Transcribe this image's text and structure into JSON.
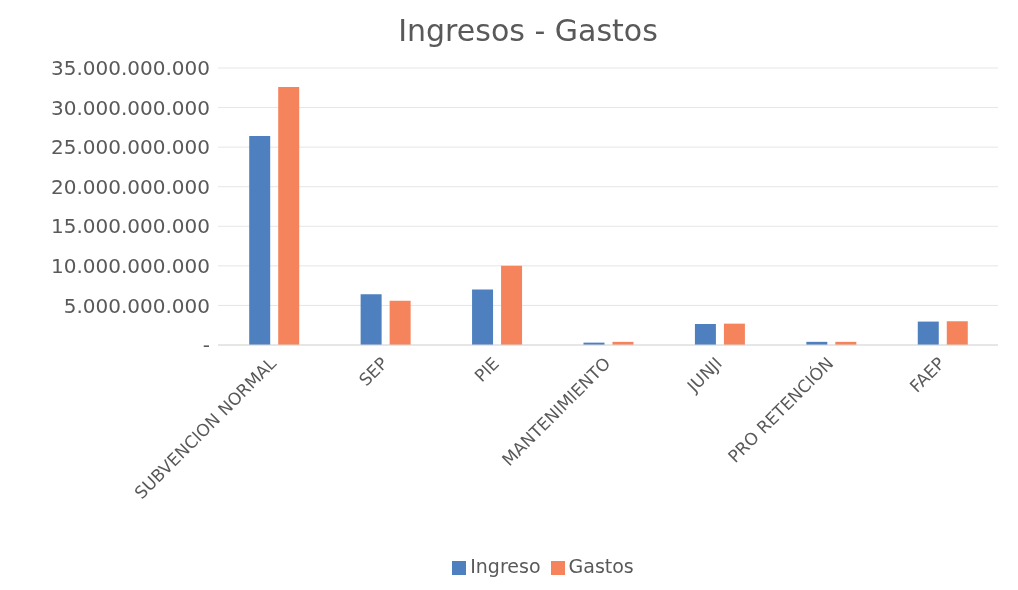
{
  "chart_data": {
    "type": "bar",
    "title": "Ingresos - Gastos",
    "categories": [
      "SUBVENCION NORMAL",
      "SEP",
      "PIE",
      "MANTENIMIENTO",
      "JUNJI",
      "PRO RETENCIÓN",
      "FAEP"
    ],
    "series": [
      {
        "name": "Ingreso",
        "color": "#4e80c0",
        "values": [
          26400000000,
          6400000000,
          7000000000,
          300000000,
          2650000000,
          400000000,
          2960000000
        ]
      },
      {
        "name": "Gastos",
        "color": "#f5845c",
        "values": [
          32600000000,
          5600000000,
          10000000000,
          400000000,
          2700000000,
          400000000,
          3000000000
        ]
      }
    ],
    "ylim": [
      0,
      35000000000
    ],
    "yticks": [
      {
        "value": 0,
        "label": "-"
      },
      {
        "value": 5000000000,
        "label": "5.000.000.000"
      },
      {
        "value": 10000000000,
        "label": "10.000.000.000"
      },
      {
        "value": 15000000000,
        "label": "15.000.000.000"
      },
      {
        "value": 20000000000,
        "label": "20.000.000.000"
      },
      {
        "value": 25000000000,
        "label": "25.000.000.000"
      },
      {
        "value": 30000000000,
        "label": "30.000.000.000"
      },
      {
        "value": 35000000000,
        "label": "35.000.000.000"
      }
    ],
    "grid": "y",
    "legend": "bottom"
  }
}
